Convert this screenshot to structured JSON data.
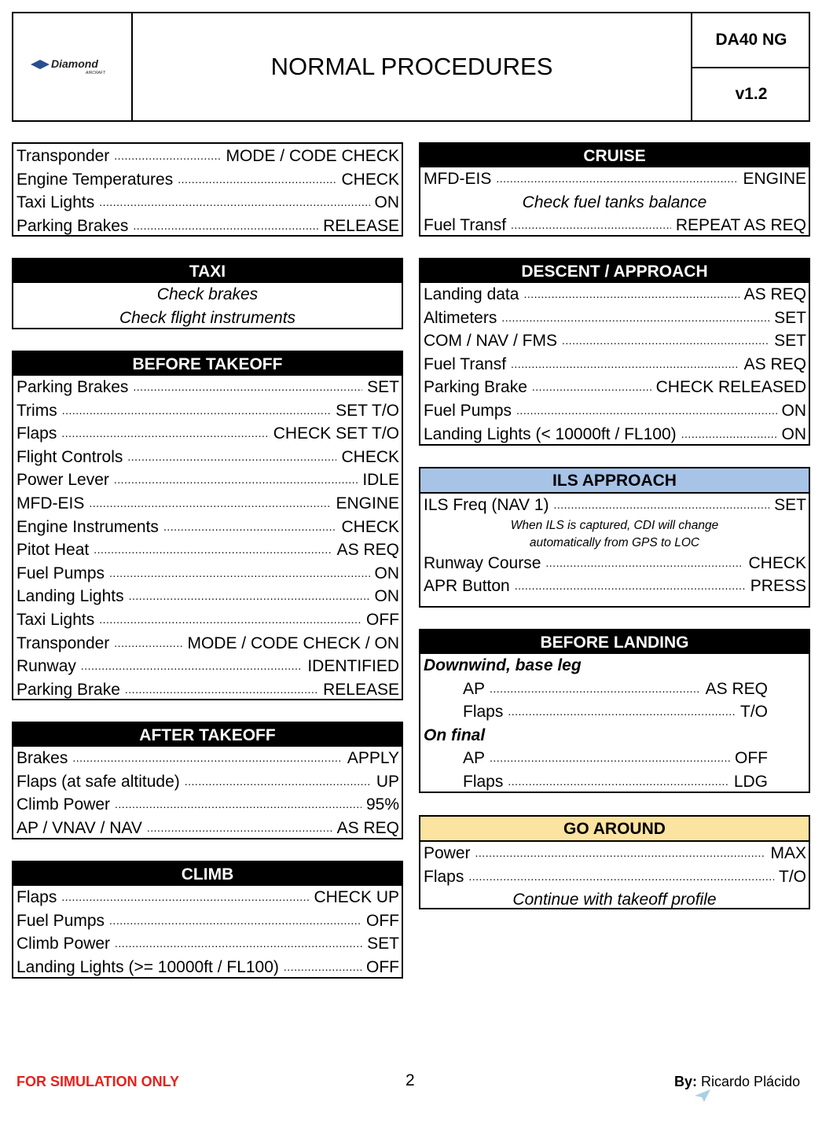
{
  "header": {
    "brand": "Diamond",
    "brand_sub": "AIRCRAFT",
    "title": "NORMAL PROCEDURES",
    "model": "DA40 NG",
    "version": "v1.2"
  },
  "sections": {
    "pre_taxi": {
      "title": "",
      "rows": [
        {
          "label": "Transponder",
          "value": "MODE / CODE CHECK"
        },
        {
          "label": "Engine Temperatures",
          "value": "CHECK"
        },
        {
          "label": "Taxi Lights",
          "value": "ON"
        },
        {
          "label": "Parking Brakes",
          "value": "RELEASE"
        }
      ]
    },
    "taxi": {
      "title": "TAXI",
      "rows": [
        {
          "note": "Check brakes"
        },
        {
          "note": "Check flight instruments"
        }
      ]
    },
    "before_takeoff": {
      "title": "BEFORE TAKEOFF",
      "rows": [
        {
          "label": "Parking Brakes",
          "value": "SET"
        },
        {
          "label": "Trims",
          "value": "SET T/O"
        },
        {
          "label": "Flaps",
          "value": "CHECK SET T/O"
        },
        {
          "label": "Flight Controls",
          "value": "CHECK"
        },
        {
          "label": "Power Lever",
          "value": "IDLE"
        },
        {
          "label": "MFD-EIS",
          "value": "ENGINE"
        },
        {
          "label": "Engine Instruments",
          "value": "CHECK"
        },
        {
          "label": "Pitot Heat",
          "value": "AS REQ"
        },
        {
          "label": "Fuel Pumps",
          "value": "ON"
        },
        {
          "label": "Landing Lights",
          "value": "ON"
        },
        {
          "label": "Taxi Lights",
          "value": "OFF"
        },
        {
          "label": "Transponder",
          "value": "MODE / CODE CHECK / ON"
        },
        {
          "label": "Runway",
          "value": "IDENTIFIED"
        },
        {
          "label": "Parking Brake",
          "value": "RELEASE"
        }
      ]
    },
    "after_takeoff": {
      "title": "AFTER TAKEOFF",
      "rows": [
        {
          "label": "Brakes",
          "value": "APPLY"
        },
        {
          "label": "Flaps (at safe altitude)",
          "value": "UP"
        },
        {
          "label": "Climb Power",
          "value": "95%"
        },
        {
          "label": "AP / VNAV / NAV",
          "value": "AS REQ"
        }
      ]
    },
    "climb": {
      "title": "CLIMB",
      "rows": [
        {
          "label": "Flaps",
          "value": "CHECK UP"
        },
        {
          "label": "Fuel Pumps",
          "value": "OFF"
        },
        {
          "label": "Climb Power",
          "value": "SET"
        },
        {
          "label": "Landing Lights (>= 10000ft / FL100)",
          "value": "OFF"
        }
      ]
    },
    "cruise": {
      "title": "CRUISE",
      "rows": [
        {
          "label": "MFD-EIS",
          "value": "ENGINE"
        },
        {
          "note": "Check fuel tanks balance"
        },
        {
          "label": "Fuel Transf",
          "value": "REPEAT AS REQ"
        }
      ]
    },
    "descent": {
      "title": "DESCENT / APPROACH",
      "rows": [
        {
          "label": "Landing data",
          "value": "AS REQ"
        },
        {
          "label": "Altimeters",
          "value": "SET"
        },
        {
          "label": "COM / NAV / FMS",
          "value": "SET"
        },
        {
          "label": "Fuel Transf",
          "value": "AS REQ"
        },
        {
          "label": "Parking Brake",
          "value": "CHECK RELEASED"
        },
        {
          "label": "Fuel Pumps",
          "value": "ON"
        },
        {
          "label": "Landing Lights (< 10000ft / FL100)",
          "value": "ON"
        }
      ]
    },
    "ils": {
      "title": "ILS APPROACH",
      "header_color": "#a7c3e6",
      "rows": [
        {
          "label": "ILS Freq (NAV 1)",
          "value": "SET"
        },
        {
          "small": "When ILS is captured, CDI will change"
        },
        {
          "small": "automatically from GPS to LOC"
        },
        {
          "label": "Runway Course",
          "value": "CHECK"
        },
        {
          "label": "APR Button",
          "value": "PRESS"
        }
      ]
    },
    "before_landing": {
      "title": "BEFORE LANDING",
      "rows": [
        {
          "sub": "Downwind, base leg"
        },
        {
          "label": "AP",
          "value": "AS REQ",
          "indent": true
        },
        {
          "label": "Flaps",
          "value": "T/O",
          "indent": true
        },
        {
          "sub": "On final"
        },
        {
          "label": "AP",
          "value": "OFF",
          "indent": true
        },
        {
          "label": "Flaps",
          "value": "LDG",
          "indent": true
        }
      ]
    },
    "go_around": {
      "title": "GO AROUND",
      "header_color": "#fbe3a0",
      "rows": [
        {
          "label": "Power",
          "value": "MAX"
        },
        {
          "label": "Flaps",
          "value": "T/O"
        },
        {
          "note": "Continue with takeoff profile"
        }
      ]
    }
  },
  "footer": {
    "disclaimer": "FOR SIMULATION ONLY",
    "disclaimer_color": "#e8201c",
    "page": "2",
    "by_label": "By:",
    "author": "Ricardo Plácido"
  }
}
